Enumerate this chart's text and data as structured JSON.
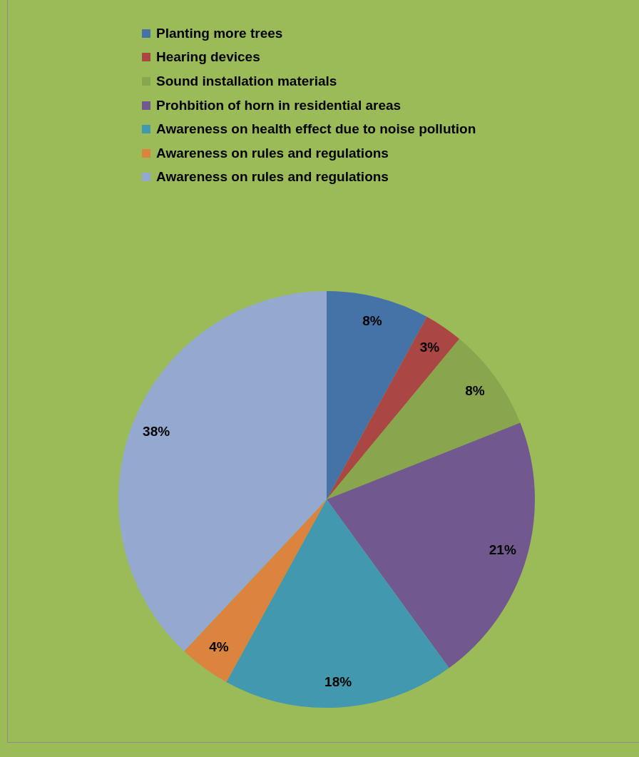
{
  "chart_data": {
    "type": "pie",
    "categories": [
      "Planting more trees",
      "Hearing devices",
      "Sound installation materials",
      "Prohbition of horn in residential areas",
      "Awareness on health effect due to noise pollution",
      "Awareness on rules and regulations",
      "Awareness on rules and regulations"
    ],
    "values": [
      8,
      3,
      8,
      21,
      18,
      4,
      38
    ],
    "colors": [
      "#4572a7",
      "#aa4643",
      "#89a54e",
      "#71588f",
      "#4198af",
      "#db843d",
      "#93a9cf"
    ],
    "value_labels": [
      "8%",
      "3%",
      "8%",
      "21%",
      "18%",
      "4%",
      "38%"
    ],
    "legend": "top"
  }
}
